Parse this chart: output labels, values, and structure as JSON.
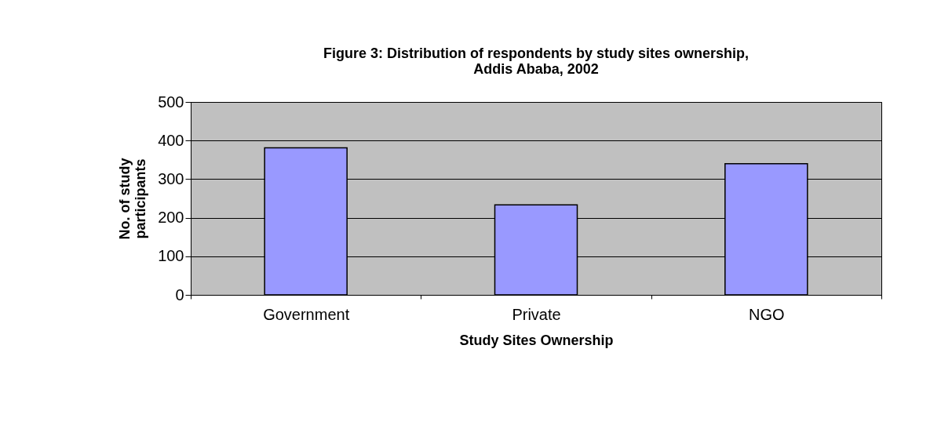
{
  "chart_data": {
    "type": "bar",
    "title": [
      "Figure 3: Distribution of respondents by study sites ownership,",
      "Addis Ababa, 2002"
    ],
    "xlabel": "Study Sites Ownership",
    "ylabel": [
      "No. of study",
      "participants"
    ],
    "categories": [
      "Government",
      "Private",
      "NGO"
    ],
    "values": [
      381,
      233,
      340
    ],
    "color": "#9999ff",
    "ylim": [
      0,
      500
    ],
    "yticks": [
      0,
      100,
      200,
      300,
      400,
      500
    ],
    "grid": "y"
  }
}
